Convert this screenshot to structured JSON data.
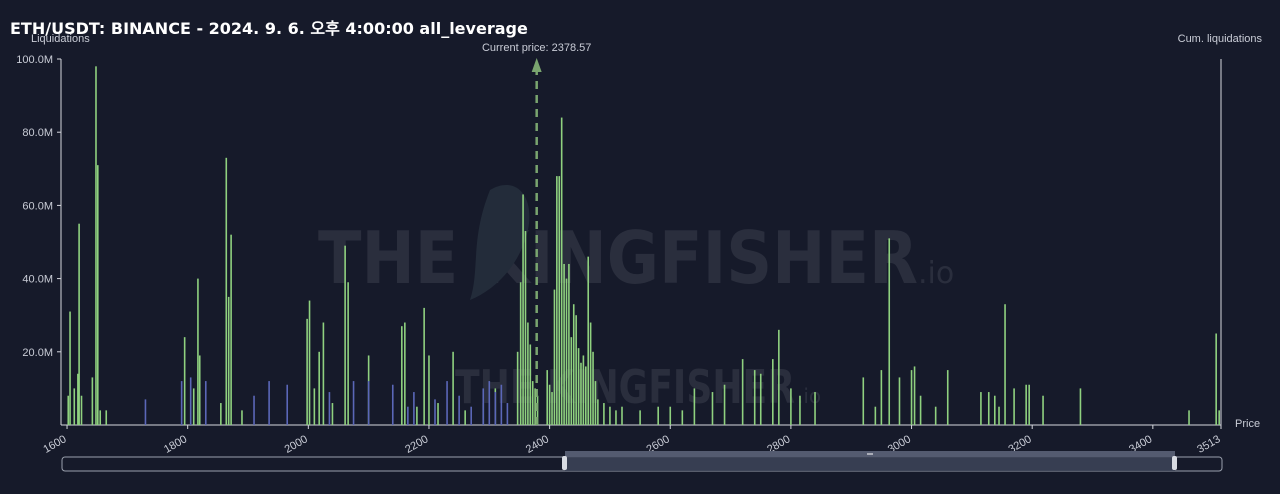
{
  "title": "ETH/USDT: BINANCE - 2024. 9. 6. 오후 4:00:00 all_leverage",
  "watermark": {
    "text": "THE KINGFISHER",
    "suffix": ".io"
  },
  "chart_data": {
    "type": "bar",
    "ylabel_left": "Liquidations",
    "ylabel_right": "Cum. liquidations",
    "xlabel": "Price",
    "xlim": [
      1590,
      3513
    ],
    "ylim": [
      0,
      100
    ],
    "y_ticks": [
      {
        "value": 20,
        "label": "20.0M"
      },
      {
        "value": 40,
        "label": "40.0M"
      },
      {
        "value": 60,
        "label": "60.0M"
      },
      {
        "value": 80,
        "label": "80.0M"
      },
      {
        "value": 100,
        "label": "100.0M"
      }
    ],
    "x_ticks": [
      {
        "value": 1600,
        "label": "1600"
      },
      {
        "value": 1800,
        "label": "1800"
      },
      {
        "value": 2000,
        "label": "2000"
      },
      {
        "value": 2200,
        "label": "2200"
      },
      {
        "value": 2400,
        "label": "2400"
      },
      {
        "value": 2600,
        "label": "2600"
      },
      {
        "value": 2800,
        "label": "2800"
      },
      {
        "value": 3000,
        "label": "3000"
      },
      {
        "value": 3200,
        "label": "3200"
      },
      {
        "value": 3400,
        "label": "3400"
      },
      {
        "value": 3513,
        "label": "3513"
      }
    ],
    "current_price": {
      "value": 2378.57,
      "label": "Current price: 2378.57"
    },
    "series": [
      {
        "color": "#8fd17f",
        "points": [
          [
            1602,
            8
          ],
          [
            1605,
            31
          ],
          [
            1612,
            10
          ],
          [
            1618,
            14
          ],
          [
            1620,
            55
          ],
          [
            1624,
            8
          ],
          [
            1642,
            13
          ],
          [
            1648,
            98
          ],
          [
            1651,
            71
          ],
          [
            1655,
            4
          ],
          [
            1665,
            4
          ],
          [
            1795,
            24
          ],
          [
            1810,
            10
          ],
          [
            1817,
            40
          ],
          [
            1820,
            19
          ],
          [
            1855,
            6
          ],
          [
            1864,
            73
          ],
          [
            1868,
            35
          ],
          [
            1872,
            52
          ],
          [
            1890,
            4
          ],
          [
            1998,
            29
          ],
          [
            2002,
            34
          ],
          [
            2010,
            10
          ],
          [
            2018,
            20
          ],
          [
            2025,
            28
          ],
          [
            2040,
            6
          ],
          [
            2061,
            49
          ],
          [
            2066,
            39
          ],
          [
            2100,
            19
          ],
          [
            2155,
            27
          ],
          [
            2160,
            28
          ],
          [
            2180,
            5
          ],
          [
            2192,
            32
          ],
          [
            2200,
            19
          ],
          [
            2215,
            6
          ],
          [
            2240,
            20
          ],
          [
            2260,
            4
          ],
          [
            2290,
            6
          ],
          [
            2310,
            10
          ],
          [
            2347,
            20
          ],
          [
            2352,
            39
          ],
          [
            2356,
            63
          ],
          [
            2360,
            53
          ],
          [
            2364,
            28
          ],
          [
            2368,
            22
          ],
          [
            2372,
            12
          ],
          [
            2376,
            10
          ],
          [
            2380,
            8
          ],
          [
            2396,
            15
          ],
          [
            2400,
            11
          ],
          [
            2404,
            9
          ],
          [
            2408,
            37
          ],
          [
            2412,
            68
          ],
          [
            2416,
            68
          ],
          [
            2420,
            84
          ],
          [
            2424,
            44
          ],
          [
            2428,
            40
          ],
          [
            2432,
            44
          ],
          [
            2436,
            24
          ],
          [
            2440,
            33
          ],
          [
            2444,
            30
          ],
          [
            2448,
            21
          ],
          [
            2452,
            17
          ],
          [
            2456,
            19
          ],
          [
            2460,
            16
          ],
          [
            2464,
            46
          ],
          [
            2468,
            28
          ],
          [
            2472,
            20
          ],
          [
            2476,
            12
          ],
          [
            2480,
            7
          ],
          [
            2490,
            6
          ],
          [
            2500,
            5
          ],
          [
            2510,
            4
          ],
          [
            2520,
            5
          ],
          [
            2550,
            4
          ],
          [
            2580,
            5
          ],
          [
            2600,
            5
          ],
          [
            2620,
            4
          ],
          [
            2640,
            10
          ],
          [
            2670,
            9
          ],
          [
            2690,
            11
          ],
          [
            2720,
            18
          ],
          [
            2740,
            15
          ],
          [
            2750,
            14
          ],
          [
            2770,
            18
          ],
          [
            2780,
            26
          ],
          [
            2800,
            10
          ],
          [
            2815,
            8
          ],
          [
            2840,
            9
          ],
          [
            2920,
            13
          ],
          [
            2940,
            5
          ],
          [
            2950,
            15
          ],
          [
            2963,
            51
          ],
          [
            2980,
            13
          ],
          [
            3000,
            15
          ],
          [
            3005,
            16
          ],
          [
            3015,
            8
          ],
          [
            3040,
            5
          ],
          [
            3060,
            15
          ],
          [
            3115,
            9
          ],
          [
            3128,
            9
          ],
          [
            3138,
            8
          ],
          [
            3145,
            5
          ],
          [
            3155,
            33
          ],
          [
            3170,
            10
          ],
          [
            3190,
            11
          ],
          [
            3195,
            11
          ],
          [
            3218,
            8
          ],
          [
            3280,
            10
          ],
          [
            3460,
            4
          ],
          [
            3505,
            25
          ],
          [
            3510,
            4
          ]
        ]
      },
      {
        "color": "#5b67b8",
        "points": [
          [
            1730,
            7
          ],
          [
            1790,
            12
          ],
          [
            1805,
            13
          ],
          [
            1830,
            12
          ],
          [
            1910,
            8
          ],
          [
            1935,
            12
          ],
          [
            1965,
            11
          ],
          [
            2035,
            9
          ],
          [
            2075,
            12
          ],
          [
            2100,
            12
          ],
          [
            2140,
            11
          ],
          [
            2165,
            5
          ],
          [
            2175,
            9
          ],
          [
            2210,
            7
          ],
          [
            2230,
            12
          ],
          [
            2250,
            8
          ],
          [
            2270,
            5
          ],
          [
            2290,
            10
          ],
          [
            2300,
            12
          ],
          [
            2310,
            9
          ],
          [
            2320,
            11
          ],
          [
            2330,
            6
          ]
        ]
      }
    ]
  }
}
